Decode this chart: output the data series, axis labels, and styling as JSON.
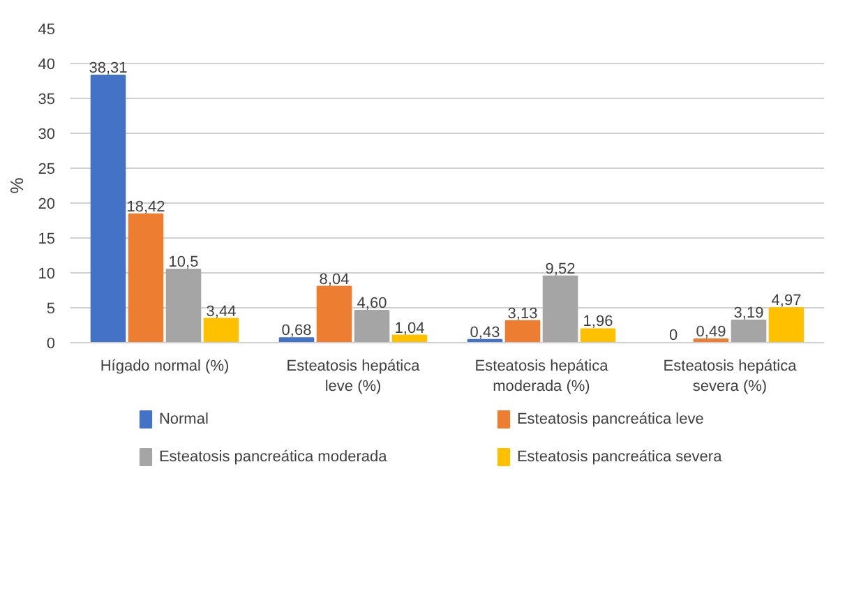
{
  "chart_data": {
    "type": "bar",
    "ylabel": "%",
    "categories": [
      "Hígado normal (%)",
      "Esteatosis hepática leve (%)",
      "Esteatosis hepática moderada (%)",
      "Esteatosis hepática severa (%)"
    ],
    "series": [
      {
        "name": "Normal",
        "color": "#4472c4",
        "values": [
          38.31,
          0.68,
          0.43,
          0
        ],
        "value_labels": [
          "38,31",
          "0,68",
          "0,43",
          "0"
        ]
      },
      {
        "name": "Esteatosis pancreática leve",
        "color": "#ed7d31",
        "values": [
          18.42,
          8.04,
          3.13,
          0.49
        ],
        "value_labels": [
          "18,42",
          "8,04",
          "3,13",
          "0,49"
        ]
      },
      {
        "name": "Esteatosis pancreática moderada",
        "color": "#a5a5a5",
        "values": [
          10.5,
          4.6,
          9.52,
          3.19
        ],
        "value_labels": [
          "10,5",
          "4,60",
          "9,52",
          "3,19"
        ]
      },
      {
        "name": "Esteatosis pancreática severa",
        "color": "#ffc000",
        "values": [
          3.44,
          1.04,
          1.96,
          4.97
        ],
        "value_labels": [
          "3,44",
          "1,04",
          "1,96",
          "4,97"
        ]
      }
    ],
    "ylim": [
      0,
      45
    ],
    "yticks": [
      0,
      5,
      10,
      15,
      20,
      25,
      30,
      35,
      40,
      45
    ],
    "grid": "y",
    "legend": "bottom"
  }
}
